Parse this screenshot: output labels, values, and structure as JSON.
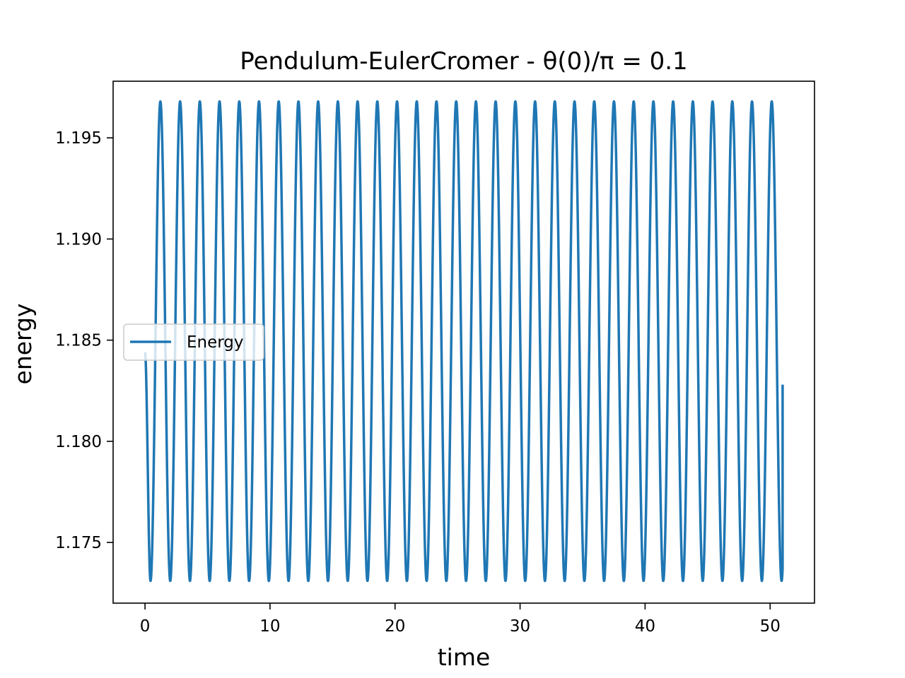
{
  "chart_data": {
    "type": "line",
    "title": "Pendulum-EulerCromer - θ(0)/π = 0.1",
    "xlabel": "time",
    "ylabel": "energy",
    "xlim": [
      -2.55,
      53.55
    ],
    "ylim": [
      1.172,
      1.1978
    ],
    "x_ticks": [
      0,
      10,
      20,
      30,
      40,
      50
    ],
    "x_tick_labels": [
      "0",
      "10",
      "20",
      "30",
      "40",
      "50"
    ],
    "y_ticks": [
      1.175,
      1.18,
      1.185,
      1.19,
      1.195
    ],
    "y_tick_labels": [
      "1.175",
      "1.180",
      "1.185",
      "1.190",
      "1.195"
    ],
    "grid": false,
    "legend_position": "center-left",
    "colors": {
      "series": "#1f77b4"
    },
    "series": [
      {
        "name": "Energy",
        "oscillation": {
          "x_start": 0.0,
          "x_end": 51.0,
          "start_value": 1.1844,
          "end_value": 1.1828,
          "max": 1.1968,
          "min": 1.1731,
          "period": 1.5774,
          "first_peak_at": 1.23,
          "first_trough_at": 0.44
        }
      }
    ]
  }
}
